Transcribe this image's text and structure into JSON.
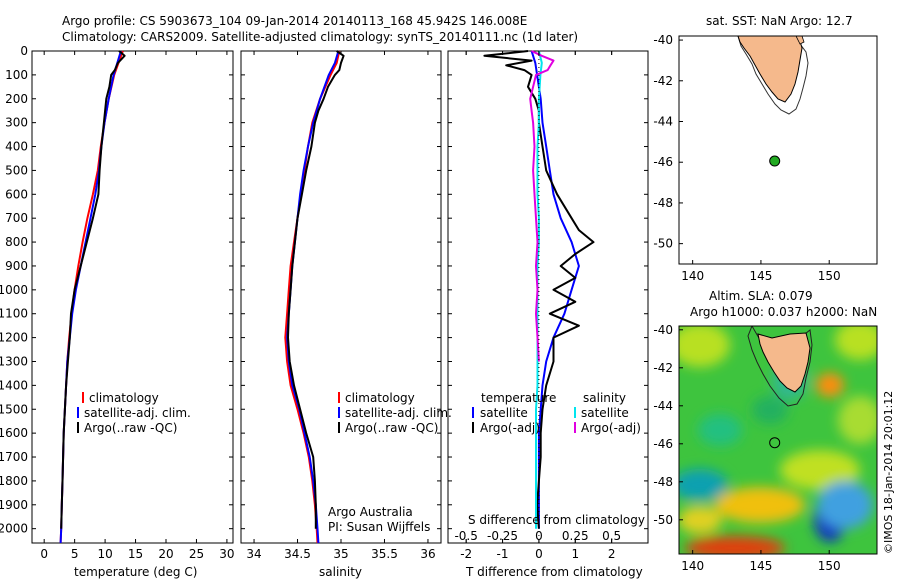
{
  "header": {
    "line1": "Argo profile: CS 5903673_104 09-Jan-2014 20140113_168 45.942S 146.008E",
    "line2": "Climatology: CARS2009. Satellite-adjusted climatology: synTS_20140111.nc (1d later)"
  },
  "colors": {
    "climatology": "#ff0000",
    "satellite": "#0000ff",
    "argo": "#000000",
    "salinity_satellite": "#00e5ee",
    "salinity_argo": "#e000e0",
    "land": "#f5b98c",
    "float_marker": "#22aa22"
  },
  "panels": {
    "temperature": {
      "xlabel": "temperature (deg C)"
    },
    "salinity": {
      "xlabel": "salinity",
      "note_line1": "Argo Australia",
      "note_line2": "PI: Susan Wijffels"
    },
    "difference": {
      "xlabel": "T difference from climatology",
      "xlabel_top": "S difference from climatology"
    },
    "sst_map": {
      "title": "sat. SST: NaN  Argo: 12.7"
    },
    "sla_map": {
      "title_line1": "Altim. SLA: 0.079",
      "title_line2": "Argo h1000: 0.037 h2000: NaN",
      "side_label": "©IMOS 18-Jan-2014 20:01:12"
    }
  },
  "legend_profile": {
    "items": [
      "climatology",
      "satellite-adj. clim.",
      "Argo(..raw -QC)"
    ]
  },
  "legend_diff": {
    "temperature_title": "temperature",
    "salinity_title": "salinity",
    "temperature_items": [
      "satellite",
      "Argo(-adj)"
    ],
    "salinity_items": [
      "satellite",
      "Argo(-adj)"
    ]
  },
  "chart_data": [
    {
      "type": "line",
      "name": "temperature profile",
      "xlabel": "temperature (deg C)",
      "ylabel": "",
      "xlim": [
        -2,
        31
      ],
      "ylim": [
        2060,
        0
      ],
      "xticks": [
        0,
        5,
        10,
        15,
        20,
        25,
        30
      ],
      "yticks": [
        0,
        100,
        200,
        300,
        400,
        500,
        600,
        700,
        800,
        900,
        1000,
        1100,
        1200,
        1300,
        1400,
        1500,
        1600,
        1700,
        1800,
        1900,
        2000
      ],
      "series": [
        {
          "name": "climatology",
          "depth": [
            0,
            50,
            100,
            200,
            300,
            400,
            500,
            600,
            700,
            800,
            900,
            1000,
            1100,
            1200,
            1300,
            1400,
            1500,
            1600,
            1700,
            1800,
            1900,
            2000,
            2060
          ],
          "values": [
            12.9,
            12.2,
            11.5,
            10.6,
            9.9,
            9.3,
            8.8,
            8.0,
            7.1,
            6.3,
            5.6,
            5.0,
            4.5,
            4.1,
            3.8,
            3.6,
            3.4,
            3.2,
            3.1,
            3.0,
            2.9,
            2.8,
            2.7
          ]
        },
        {
          "name": "satellite-adj. clim.",
          "depth": [
            0,
            50,
            100,
            200,
            300,
            400,
            500,
            600,
            700,
            800,
            900,
            1000,
            1100,
            1200,
            1300,
            1400,
            1500,
            1600,
            1700,
            1800,
            1900,
            2000,
            2060
          ],
          "values": [
            12.6,
            12.0,
            11.4,
            10.6,
            9.9,
            9.4,
            9.0,
            8.4,
            7.6,
            6.8,
            6.0,
            5.2,
            4.6,
            4.2,
            3.8,
            3.6,
            3.4,
            3.2,
            3.1,
            3.0,
            2.9,
            2.8,
            2.7
          ]
        },
        {
          "name": "Argo(..raw -QC)",
          "depth": [
            0,
            20,
            50,
            80,
            100,
            150,
            200,
            250,
            300,
            400,
            500,
            600,
            700,
            800,
            900,
            1000,
            1100,
            1200,
            1300,
            1400,
            1500,
            1600,
            1700,
            1800,
            1900,
            2000
          ],
          "values": [
            12.3,
            13.2,
            12.1,
            11.6,
            11.0,
            10.7,
            10.2,
            10.0,
            9.8,
            9.4,
            9.1,
            8.9,
            8.0,
            7.0,
            6.0,
            5.0,
            4.4,
            4.2,
            3.9,
            3.6,
            3.4,
            3.2,
            3.1,
            3.0,
            2.9,
            2.8
          ]
        }
      ]
    },
    {
      "type": "line",
      "name": "salinity profile",
      "xlabel": "salinity",
      "ylabel": "",
      "xlim": [
        33.85,
        36.15
      ],
      "ylim": [
        2060,
        0
      ],
      "xticks": [
        34,
        34.5,
        35,
        35.5,
        36
      ],
      "series": [
        {
          "name": "climatology",
          "depth": [
            0,
            50,
            100,
            200,
            300,
            400,
            500,
            600,
            700,
            800,
            900,
            1000,
            1100,
            1200,
            1300,
            1400,
            1500,
            1600,
            1700,
            1800,
            1900,
            2000,
            2060
          ],
          "values": [
            34.98,
            34.95,
            34.88,
            34.76,
            34.67,
            34.62,
            34.58,
            34.54,
            34.5,
            34.46,
            34.42,
            34.4,
            34.38,
            34.36,
            34.38,
            34.42,
            34.5,
            34.57,
            34.63,
            34.67,
            34.7,
            34.72,
            34.73
          ]
        },
        {
          "name": "satellite-adj. clim.",
          "depth": [
            0,
            50,
            100,
            200,
            300,
            400,
            500,
            600,
            700,
            800,
            900,
            1000,
            1100,
            1200,
            1300,
            1400,
            1500,
            1600,
            1700,
            1800,
            1900,
            2000,
            2060
          ],
          "values": [
            34.97,
            34.93,
            34.86,
            34.76,
            34.68,
            34.62,
            34.57,
            34.53,
            34.5,
            34.47,
            34.44,
            34.42,
            34.4,
            34.38,
            34.4,
            34.44,
            34.52,
            34.58,
            34.64,
            34.68,
            34.71,
            34.73,
            34.74
          ]
        },
        {
          "name": "Argo(..raw -QC)",
          "depth": [
            0,
            20,
            50,
            80,
            100,
            150,
            200,
            250,
            300,
            400,
            500,
            600,
            700,
            800,
            900,
            1000,
            1100,
            1200,
            1300,
            1400,
            1500,
            1600,
            1700,
            1800,
            1900,
            2000
          ],
          "values": [
            34.95,
            35.03,
            35.0,
            34.98,
            34.93,
            34.85,
            34.8,
            34.74,
            34.7,
            34.66,
            34.6,
            34.55,
            34.5,
            34.47,
            34.44,
            34.42,
            34.4,
            34.39,
            34.41,
            34.46,
            34.53,
            34.6,
            34.68,
            34.7,
            34.71,
            34.71
          ]
        }
      ]
    },
    {
      "type": "line",
      "name": "difference from climatology",
      "xlabel": "T difference from climatology",
      "xlabel_top": "S difference from climatology",
      "xlim_T": [
        -2.5,
        3
      ],
      "xticks_T": [
        -2,
        -1,
        0,
        1,
        2
      ],
      "xlim_S": [
        -0.625,
        0.75
      ],
      "xticks_S": [
        -0.5,
        -0.25,
        0,
        0.25,
        0.5
      ],
      "xticklabels_S": [
        "-0.5",
        "-0.25",
        "0",
        "0.25",
        "0.5"
      ],
      "ylim": [
        2060,
        0
      ],
      "series": [
        {
          "name": "temperature satellite",
          "axis": "T",
          "depth": [
            0,
            50,
            100,
            200,
            300,
            400,
            500,
            600,
            700,
            800,
            900,
            1000,
            1100,
            1200,
            1300,
            1400,
            1500,
            1600,
            1700,
            1800,
            1900,
            2000
          ],
          "values": [
            -0.2,
            -0.1,
            -0.05,
            0.05,
            0.1,
            0.2,
            0.3,
            0.4,
            0.6,
            0.9,
            1.1,
            0.9,
            0.7,
            0.4,
            0.2,
            0.1,
            0.05,
            0,
            0,
            0,
            0,
            0
          ]
        },
        {
          "name": "temperature Argo(-adj)",
          "axis": "T",
          "depth": [
            0,
            20,
            40,
            60,
            80,
            100,
            150,
            200,
            250,
            300,
            400,
            500,
            600,
            700,
            750,
            800,
            850,
            900,
            950,
            1000,
            1050,
            1100,
            1150,
            1200,
            1300,
            1400,
            1500,
            1600,
            1700,
            1800,
            1900,
            2000
          ],
          "values": [
            -0.3,
            -1.5,
            -0.2,
            -0.9,
            -0.4,
            -0.2,
            -0.3,
            -0.1,
            0.0,
            0.0,
            0.1,
            0.2,
            0.5,
            0.9,
            1.1,
            1.5,
            1.0,
            0.6,
            1.0,
            0.4,
            1.0,
            0.3,
            1.1,
            0.4,
            0.4,
            0.2,
            0.1,
            0.05,
            0.05,
            0.0,
            -0.05,
            0.0
          ]
        },
        {
          "name": "salinity satellite",
          "axis": "S",
          "depth": [
            0,
            50,
            100,
            200,
            300,
            400,
            500,
            600,
            700,
            800,
            900,
            1000,
            1100,
            1200,
            1300,
            1400,
            1500,
            1600,
            1700,
            1800,
            1900,
            2000
          ],
          "values": [
            0.0,
            0.02,
            0.01,
            0.0,
            0.0,
            -0.01,
            -0.01,
            -0.01,
            0.0,
            0.0,
            -0.01,
            -0.01,
            -0.01,
            -0.01,
            -0.01,
            -0.01,
            -0.02,
            -0.02,
            -0.02,
            -0.02,
            -0.02,
            -0.02
          ]
        },
        {
          "name": "salinity Argo(-adj)",
          "axis": "S",
          "depth": [
            0,
            20,
            40,
            60,
            80,
            100,
            150,
            200,
            250,
            300,
            400,
            500,
            600,
            700,
            800,
            900,
            1000,
            1100,
            1200,
            1300
          ],
          "values": [
            -0.05,
            0.02,
            0.1,
            0.08,
            0.06,
            -0.02,
            -0.04,
            -0.06,
            -0.05,
            -0.04,
            -0.03,
            -0.04,
            -0.03,
            -0.02,
            -0.01,
            -0.02,
            -0.01,
            -0.02,
            -0.01,
            0.0
          ]
        }
      ]
    },
    {
      "type": "scatter",
      "name": "SST map",
      "xlim": [
        139,
        153.5
      ],
      "ylim": [
        -51,
        -39.8
      ],
      "xticks": [
        140,
        145,
        150
      ],
      "yticks": [
        -40,
        -42,
        -44,
        -46,
        -48,
        -50
      ],
      "points": [
        {
          "x": 146.008,
          "y": -45.942
        }
      ]
    },
    {
      "type": "heatmap",
      "name": "SLA map",
      "xlim": [
        139,
        153.5
      ],
      "ylim": [
        -51.8,
        -39.8
      ],
      "xticks": [
        140,
        145,
        150
      ],
      "yticks": [
        -40,
        -42,
        -44,
        -46,
        -48,
        -50
      ],
      "points": [
        {
          "x": 146.008,
          "y": -45.942
        }
      ]
    }
  ]
}
